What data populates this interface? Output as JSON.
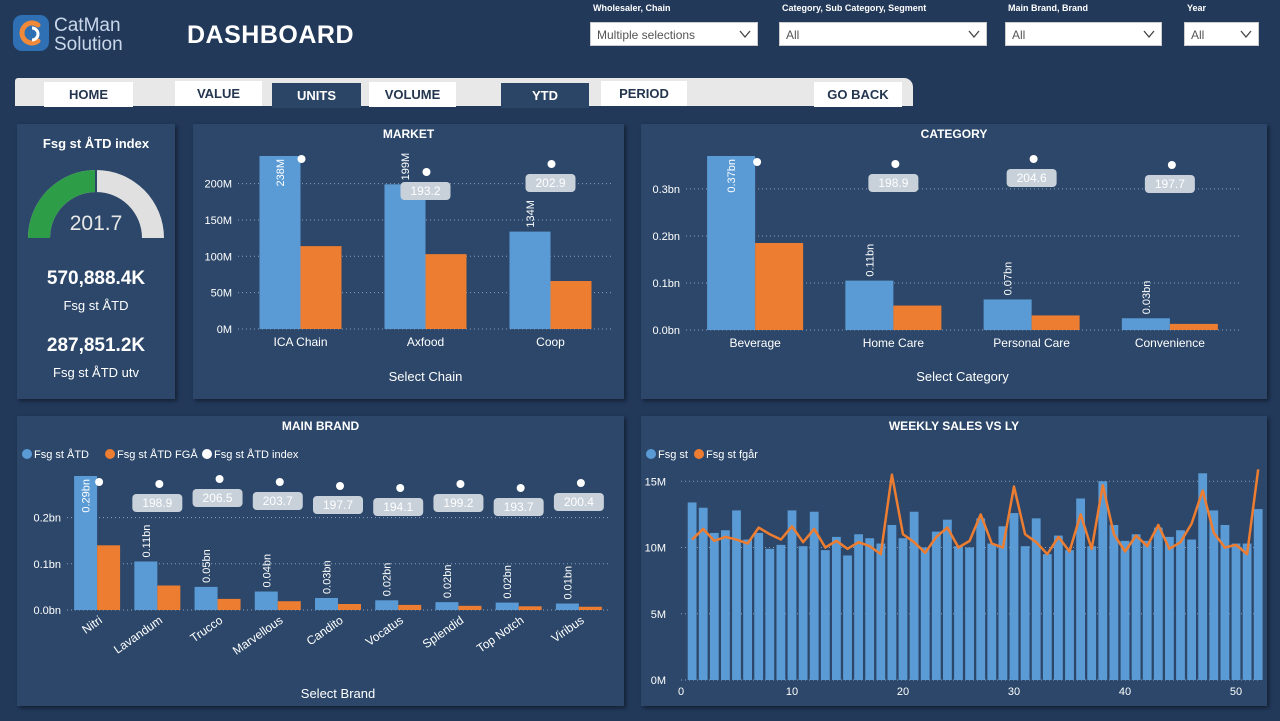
{
  "header": {
    "logo_line1": "CatMan",
    "logo_line2": "Solution",
    "title": "DASHBOARD"
  },
  "filters": [
    {
      "label": "Wholesaler, Chain",
      "value": "Multiple selections"
    },
    {
      "label": "Category, Sub Category, Segment",
      "value": "All"
    },
    {
      "label": "Main Brand, Brand",
      "value": "All"
    },
    {
      "label": "Year",
      "value": "All"
    }
  ],
  "nav": [
    {
      "label": "HOME",
      "active": false
    },
    {
      "label": "VALUE",
      "active": false
    },
    {
      "label": "UNITS",
      "active": true
    },
    {
      "label": "VOLUME",
      "active": false
    },
    {
      "label": "YTD",
      "active": true
    },
    {
      "label": "PERIOD",
      "active": false
    },
    {
      "label": "GO BACK",
      "active": false
    }
  ],
  "kpi": {
    "gauge_title": "Fsg st ÅTD index",
    "gauge_value": "201.7",
    "gauge_fraction": 0.5,
    "value1": "570,888.4K",
    "label1": "Fsg st ÅTD",
    "value2": "287,851.2K",
    "label2": "Fsg st ÅTD utv"
  },
  "colors": {
    "blue": "#5b9bd5",
    "orange": "#ed7d31",
    "index_label_bg": "#c8d0da",
    "gauge_green": "#2e9d48"
  },
  "chart_data": [
    {
      "id": "market",
      "type": "bar",
      "title": "MARKET",
      "xlabel": "Select Chain",
      "categories": [
        "ICA Chain",
        "Axfood",
        "Coop"
      ],
      "series": [
        {
          "name": "Fsg st ÅTD",
          "values": [
            238,
            199,
            134
          ]
        },
        {
          "name": "Fsg st ÅTD FGÅ",
          "values": [
            114,
            103,
            66
          ]
        },
        {
          "name": "Fsg st ÅTD index",
          "values": [
            null,
            193.2,
            202.9
          ]
        }
      ],
      "data_labels": [
        "238M",
        "199M",
        "134M"
      ],
      "index_labels": [
        "",
        "193.2",
        "202.9"
      ],
      "ylim": [
        0,
        238
      ],
      "yticks": [
        0,
        50,
        100,
        150,
        200
      ],
      "ytick_labels": [
        "0M",
        "50M",
        "100M",
        "150M",
        "200M"
      ]
    },
    {
      "id": "category",
      "type": "bar",
      "title": "CATEGORY",
      "xlabel": "Select Category",
      "categories": [
        "Beverage",
        "Home Care",
        "Personal Care",
        "Convenience"
      ],
      "series": [
        {
          "name": "Fsg st ÅTD",
          "values": [
            0.37,
            0.105,
            0.065,
            0.025
          ]
        },
        {
          "name": "Fsg st ÅTD FGÅ",
          "values": [
            0.185,
            0.052,
            0.031,
            0.013
          ]
        },
        {
          "name": "Fsg st ÅTD index",
          "values": [
            null,
            198.9,
            204.6,
            197.7
          ]
        }
      ],
      "data_labels": [
        "0.37bn",
        "0.11bn",
        "0.07bn",
        "0.03bn"
      ],
      "index_labels": [
        "",
        "198.9",
        "204.6",
        "197.7"
      ],
      "ylim": [
        0,
        0.37
      ],
      "yticks": [
        0,
        0.1,
        0.2,
        0.3
      ],
      "ytick_labels": [
        "0.0bn",
        "0.1bn",
        "0.2bn",
        "0.3bn"
      ]
    },
    {
      "id": "brand",
      "type": "bar",
      "title": "MAIN BRAND",
      "xlabel": "Select Brand",
      "legend": [
        "Fsg st ÅTD",
        "Fsg st ÅTD FGÅ",
        "Fsg st ÅTD index"
      ],
      "categories": [
        "Nitri",
        "Lavandum",
        "Trucco",
        "Marvellous",
        "Candito",
        "Vocatus",
        "Splendid",
        "Top Notch",
        "Viribus"
      ],
      "series": [
        {
          "name": "Fsg st ÅTD",
          "values": [
            0.29,
            0.105,
            0.05,
            0.04,
            0.026,
            0.021,
            0.017,
            0.016,
            0.014
          ]
        },
        {
          "name": "Fsg st ÅTD FGÅ",
          "values": [
            0.14,
            0.053,
            0.024,
            0.019,
            0.013,
            0.011,
            0.009,
            0.008,
            0.007
          ]
        },
        {
          "name": "Fsg st ÅTD index",
          "values": [
            null,
            198.9,
            206.5,
            203.7,
            197.7,
            194.1,
            199.2,
            193.7,
            200.4
          ]
        }
      ],
      "data_labels": [
        "0.29bn",
        "0.11bn",
        "0.05bn",
        "0.04bn",
        "0.03bn",
        "0.02bn",
        "0.02bn",
        "0.02bn",
        "0.01bn"
      ],
      "index_labels": [
        "",
        "198.9",
        "206.5",
        "203.7",
        "197.7",
        "194.1",
        "199.2",
        "193.7",
        "200.4"
      ],
      "ylim": [
        0,
        0.29
      ],
      "yticks": [
        0,
        0.1,
        0.2
      ],
      "ytick_labels": [
        "0.0bn",
        "0.1bn",
        "0.2bn"
      ]
    },
    {
      "id": "weekly",
      "type": "bar",
      "title": "WEEKLY SALES VS LY",
      "legend": [
        "Fsg st",
        "Fsg st fgår"
      ],
      "x": [
        1,
        2,
        3,
        4,
        5,
        6,
        7,
        8,
        9,
        10,
        11,
        12,
        13,
        14,
        15,
        16,
        17,
        18,
        19,
        20,
        21,
        22,
        23,
        24,
        25,
        26,
        27,
        28,
        29,
        30,
        31,
        32,
        33,
        34,
        35,
        36,
        37,
        38,
        39,
        40,
        41,
        42,
        43,
        44,
        45,
        46,
        47,
        48,
        49,
        50,
        51,
        52
      ],
      "series": [
        {
          "name": "Fsg st",
          "values": [
            13.4,
            13.0,
            11.1,
            11.3,
            12.8,
            10.6,
            11.1,
            9.9,
            10.2,
            12.8,
            10.1,
            12.7,
            9.8,
            10.8,
            9.4,
            11.0,
            10.7,
            10.3,
            11.7,
            10.7,
            12.7,
            10.0,
            11.2,
            12.1,
            10.1,
            10.0,
            12.2,
            10.3,
            11.6,
            12.6,
            10.1,
            12.2,
            9.5,
            10.9,
            9.8,
            13.7,
            10.1,
            15.0,
            11.7,
            10.5,
            11.0,
            10.5,
            11.5,
            10.8,
            11.3,
            10.6,
            15.6,
            12.8,
            11.7,
            10.3,
            10.3,
            12.9
          ]
        },
        {
          "name": "Fsg st fgår",
          "values": [
            10.6,
            11.4,
            10.5,
            10.8,
            10.6,
            10.3,
            11.5,
            11.0,
            10.6,
            11.6,
            10.4,
            11.4,
            10.0,
            10.5,
            9.9,
            10.4,
            10.1,
            9.5,
            15.5,
            11.0,
            10.4,
            9.6,
            10.8,
            11.5,
            10.0,
            10.5,
            12.5,
            10.3,
            10.0,
            14.6,
            11.0,
            10.4,
            9.5,
            10.8,
            9.7,
            12.5,
            9.9,
            14.7,
            11.0,
            9.7,
            10.9,
            10.1,
            11.7,
            9.9,
            10.4,
            11.8,
            14.3,
            11.1,
            10.0,
            10.2,
            9.5,
            15.9
          ]
        }
      ],
      "ylim": [
        0,
        16
      ],
      "yticks": [
        0,
        5,
        10,
        15
      ],
      "ytick_labels": [
        "0M",
        "5M",
        "10M",
        "15M"
      ],
      "xticks": [
        0,
        10,
        20,
        30,
        40,
        50
      ],
      "xtick_labels": [
        "0",
        "10",
        "20",
        "30",
        "40",
        "50"
      ]
    }
  ]
}
